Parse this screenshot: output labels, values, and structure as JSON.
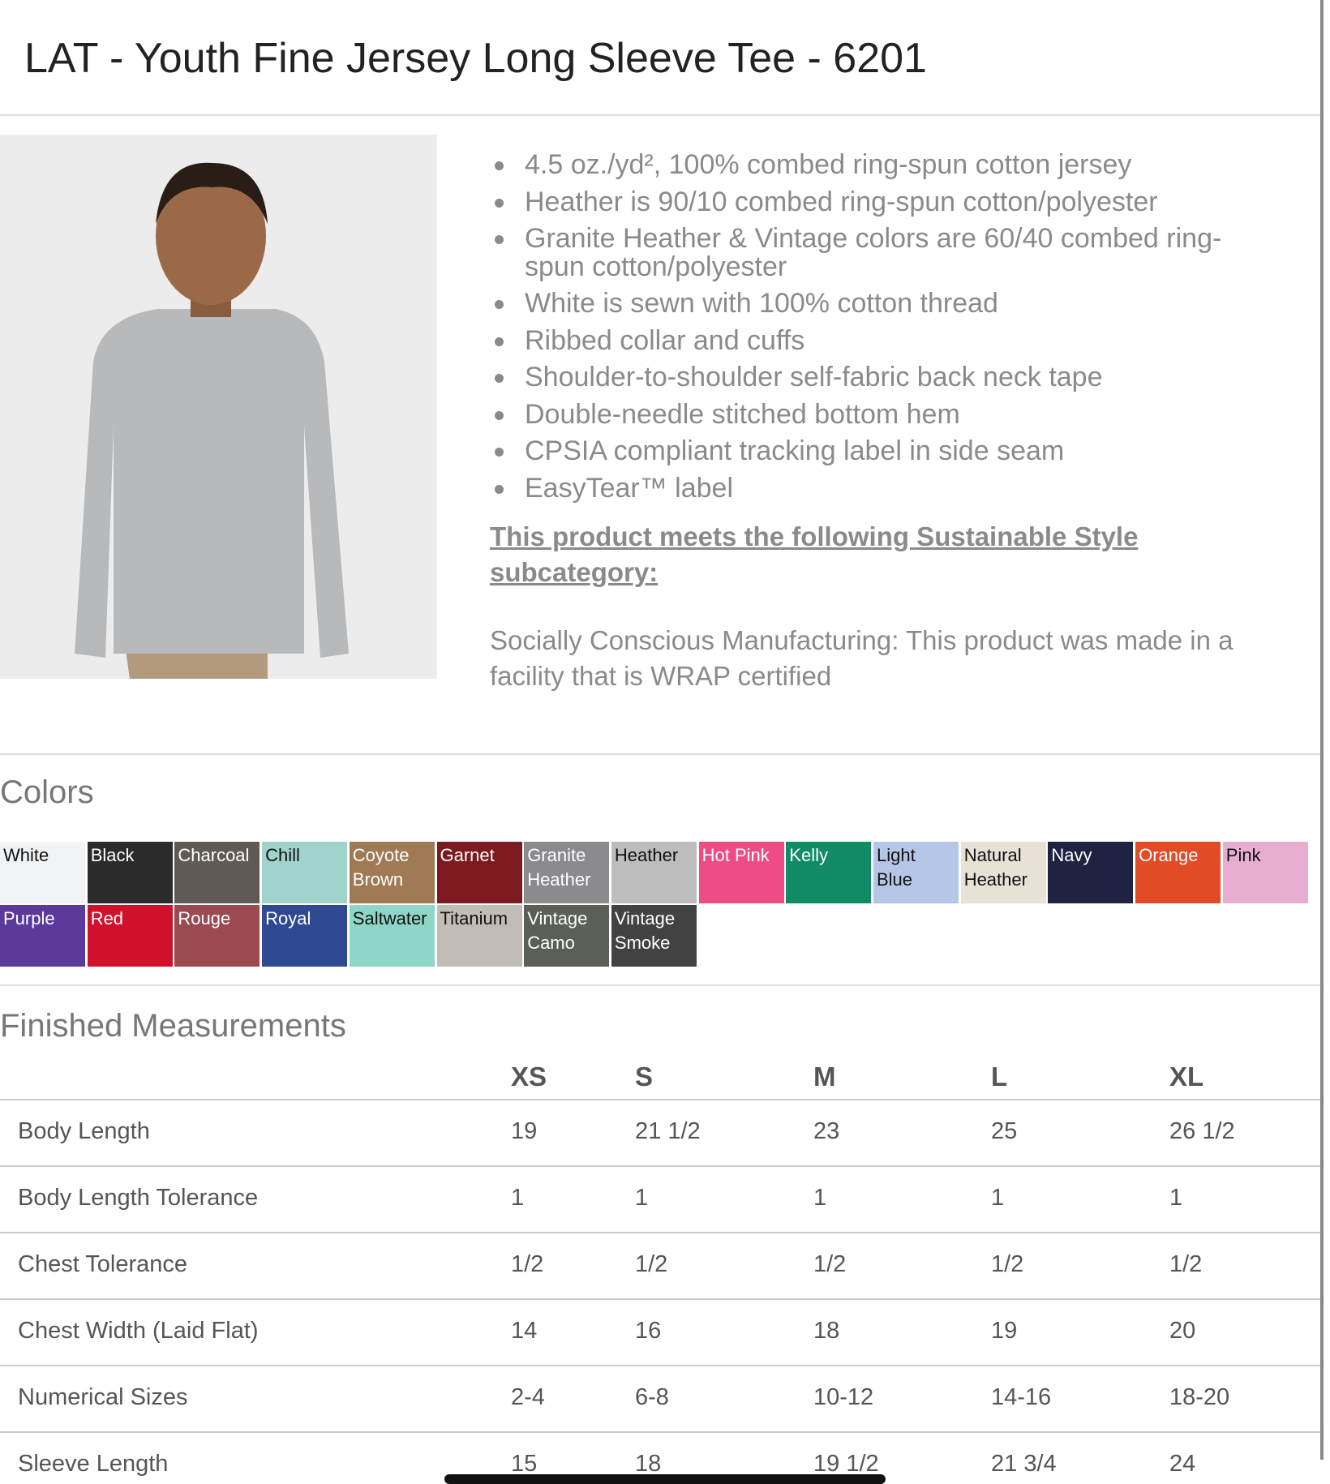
{
  "header": {
    "title": "LAT - Youth Fine Jersey Long Sleeve Tee - 6201"
  },
  "features": [
    "4.5 oz./yd², 100% combed ring-spun cotton jersey",
    "Heather is 90/10 combed ring-spun cotton/polyester",
    "Granite Heather & Vintage colors are 60/40 combed ring-spun cotton/polyester",
    "White is sewn with 100% cotton thread",
    "Ribbed collar and cuffs",
    "Shoulder-to-shoulder self-fabric back neck tape",
    "Double-needle stitched bottom hem",
    "CPSIA compliant tracking label in side seam",
    "EasyTear™ label"
  ],
  "sustainable": {
    "heading": "This product meets the following Sustainable Style subcategory:",
    "text": "Socially Conscious Manufacturing: This product was made in a facility that is WRAP certified"
  },
  "colors": {
    "title": "Colors",
    "swatches": [
      {
        "name": "White",
        "color": "#f2f3f5"
      },
      {
        "name": "Black",
        "color": "#2b2b2b"
      },
      {
        "name": "Charcoal",
        "color": "#5f5a55"
      },
      {
        "name": "Chill",
        "color": "#9fd3cc"
      },
      {
        "name": "Coyote Brown",
        "color": "#9f7a55"
      },
      {
        "name": "Garnet",
        "color": "#7c1a1f"
      },
      {
        "name": "Granite Heather",
        "color": "#8a8a8f"
      },
      {
        "name": "Heather",
        "color": "#bdbdbd"
      },
      {
        "name": "Hot Pink",
        "color": "#ef4b84"
      },
      {
        "name": "Kelly",
        "color": "#108b66"
      },
      {
        "name": "Light Blue",
        "color": "#b5c6e6"
      },
      {
        "name": "Natural Heather",
        "color": "#e8e2d6"
      },
      {
        "name": "Navy",
        "color": "#1f2240"
      },
      {
        "name": "Orange",
        "color": "#e34a26"
      },
      {
        "name": "Pink",
        "color": "#e8aed0"
      },
      {
        "name": "Purple",
        "color": "#5b3a9b"
      },
      {
        "name": "Red",
        "color": "#d0112b"
      },
      {
        "name": "Rouge",
        "color": "#9b4a52"
      },
      {
        "name": "Royal",
        "color": "#2f4a92"
      },
      {
        "name": "Saltwater",
        "color": "#8fd6c8"
      },
      {
        "name": "Titanium",
        "color": "#c2bcb6"
      },
      {
        "name": "Vintage Camo",
        "color": "#5a5f57"
      },
      {
        "name": "Vintage Smoke",
        "color": "#424242"
      }
    ]
  },
  "measurements": {
    "title": "Finished Measurements",
    "sizes": [
      "XS",
      "S",
      "M",
      "L",
      "XL"
    ],
    "rows": [
      {
        "label": "Body Length",
        "values": [
          "19",
          "21 1/2",
          "23",
          "25",
          "26 1/2"
        ]
      },
      {
        "label": "Body Length Tolerance",
        "values": [
          "1",
          "1",
          "1",
          "1",
          "1"
        ]
      },
      {
        "label": "Chest Tolerance",
        "values": [
          "1/2",
          "1/2",
          "1/2",
          "1/2",
          "1/2"
        ]
      },
      {
        "label": "Chest Width (Laid Flat)",
        "values": [
          "14",
          "16",
          "18",
          "19",
          "20"
        ]
      },
      {
        "label": "Numerical Sizes",
        "values": [
          "2-4",
          "6-8",
          "10-12",
          "14-16",
          "18-20"
        ]
      },
      {
        "label": "Sleeve Length",
        "values": [
          "15",
          "18",
          "19 1/2",
          "21 3/4",
          "24"
        ]
      }
    ]
  }
}
